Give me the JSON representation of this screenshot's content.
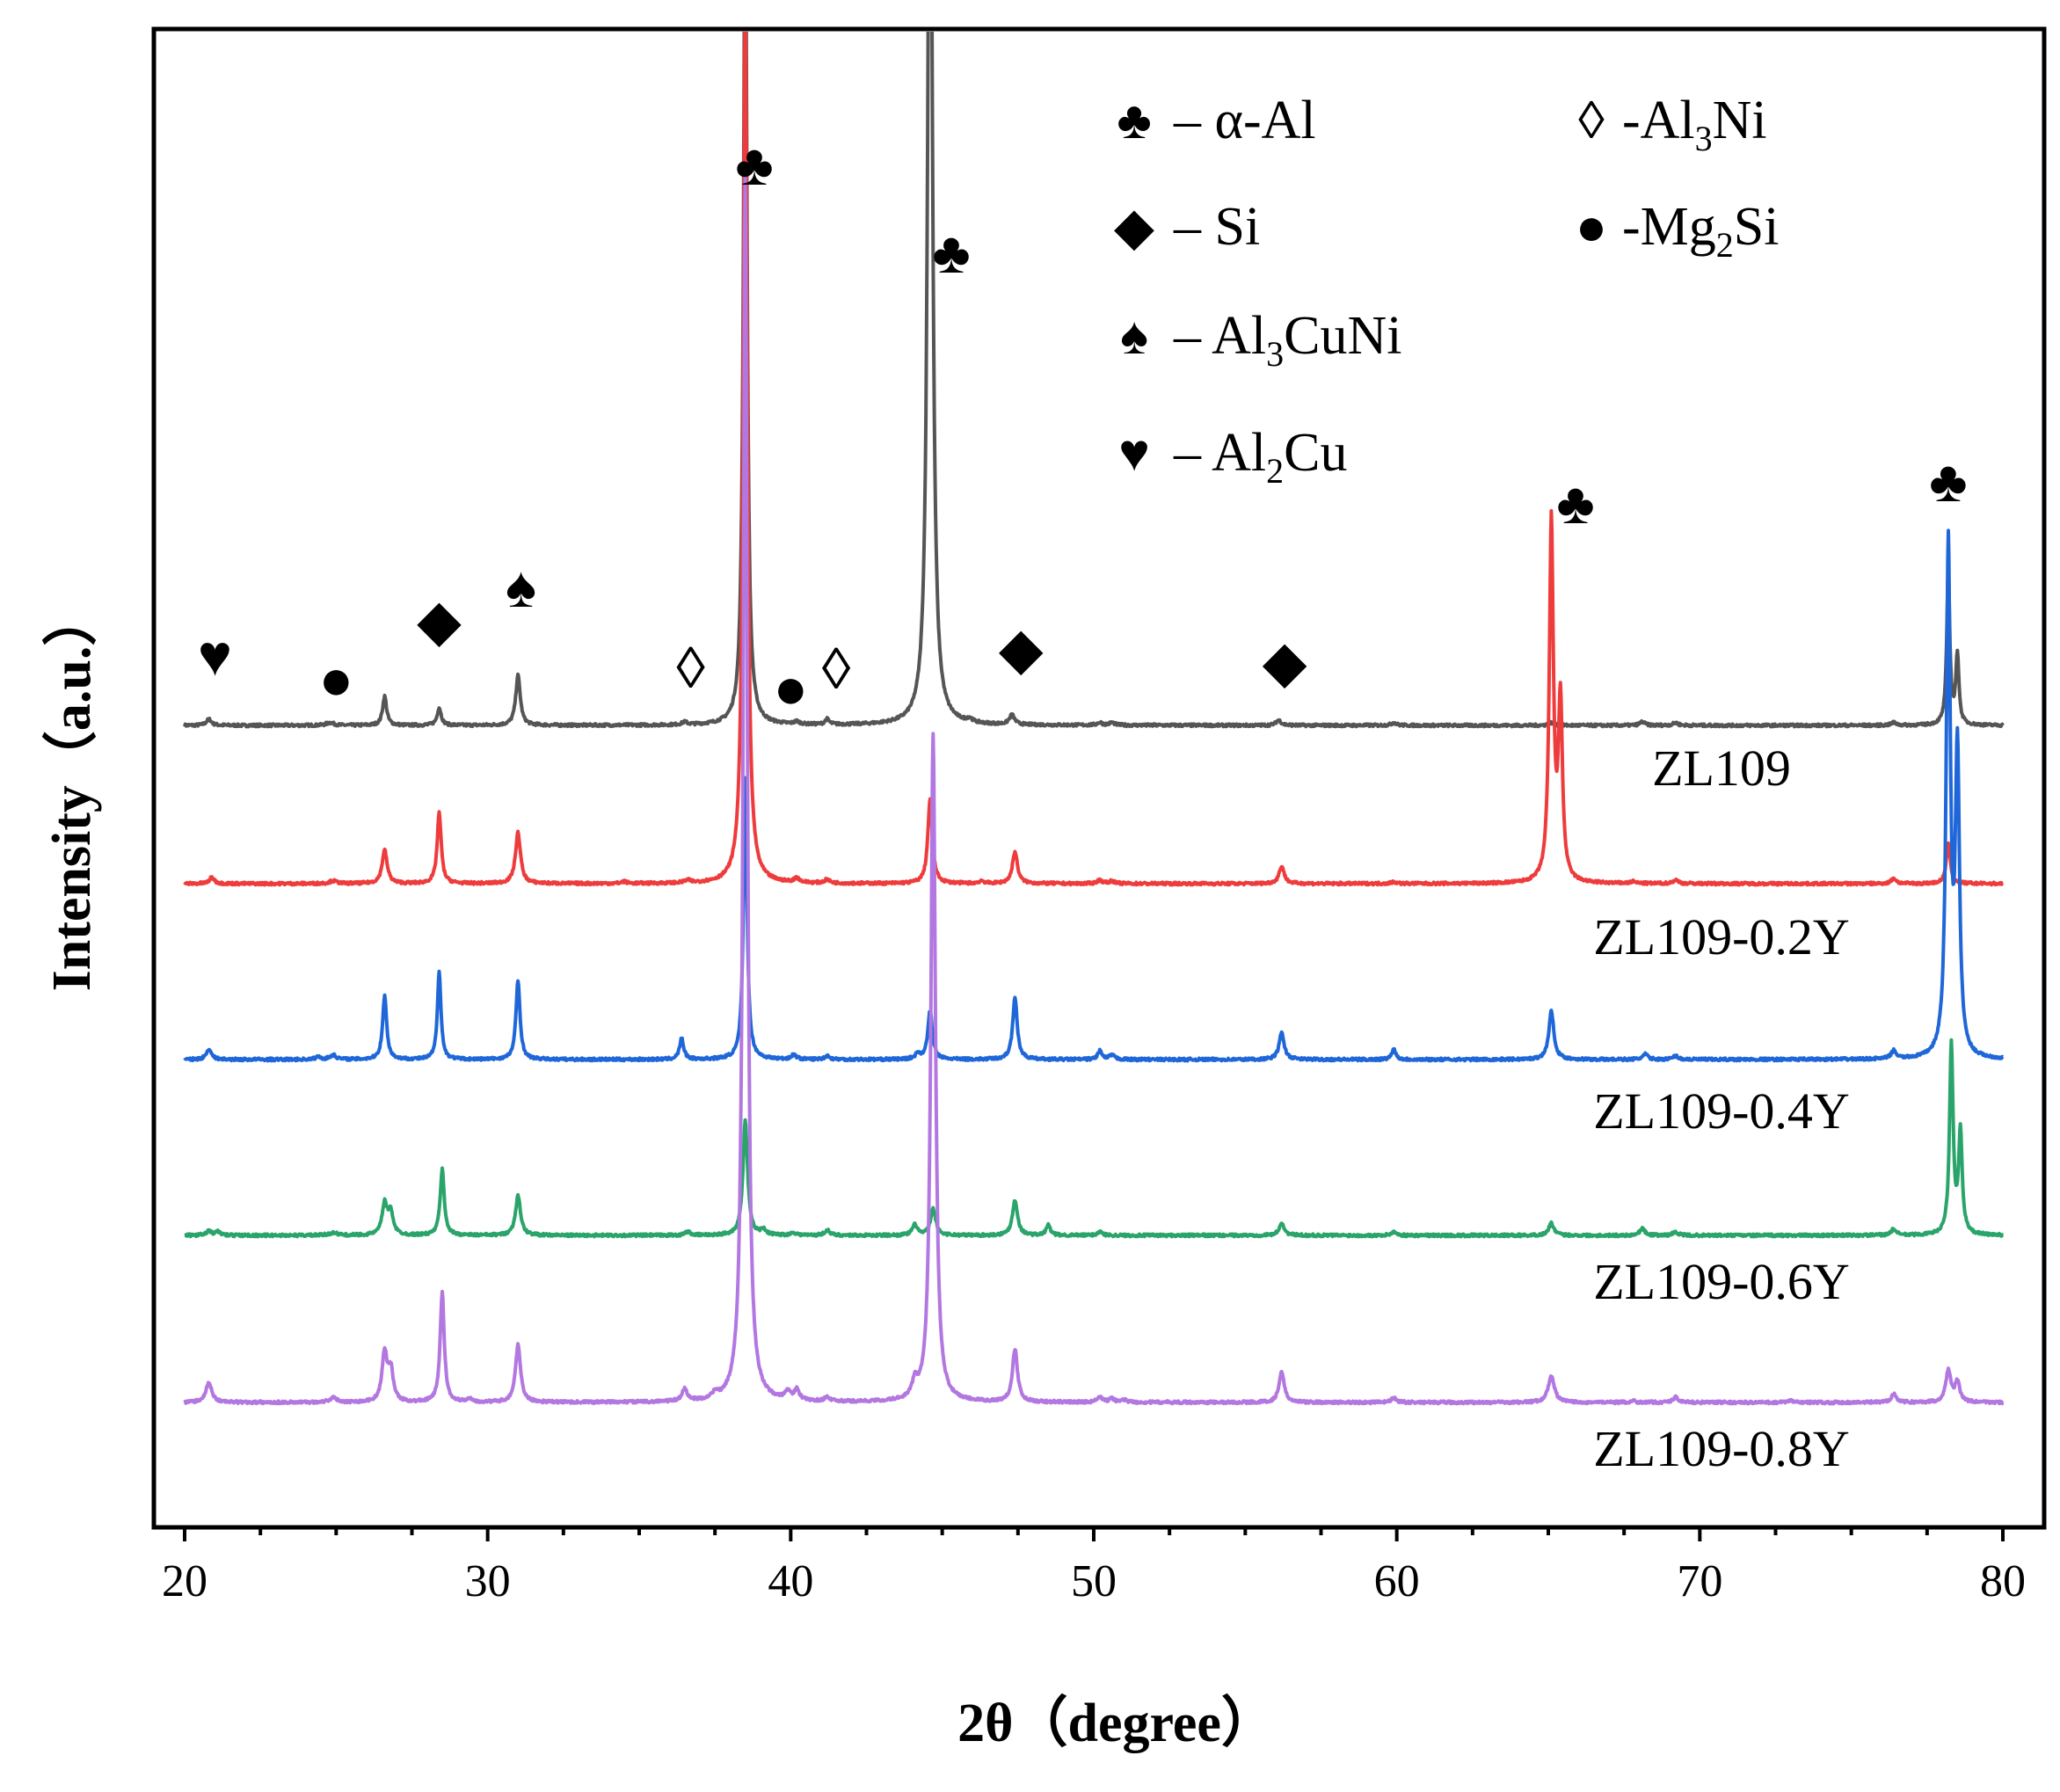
{
  "chart_data": {
    "type": "line",
    "title": "",
    "xlabel": "2θ（degree）",
    "ylabel": "Intensity（a.u.）",
    "xlim": [
      20,
      80
    ],
    "x_ticks": [
      20,
      30,
      40,
      50,
      60,
      70,
      80
    ],
    "y_ticks": [],
    "series": [
      {
        "name": "ZL109",
        "label": "ZL109",
        "color": "#555555",
        "baseline": 0,
        "peaks": [
          [
            20.8,
            7,
            0.1
          ],
          [
            24.8,
            3,
            0.15
          ],
          [
            26.6,
            33,
            0.08
          ],
          [
            28.4,
            20,
            0.08
          ],
          [
            31.0,
            57,
            0.09
          ],
          [
            36.5,
            3,
            0.1
          ],
          [
            38.5,
            980,
            0.07
          ],
          [
            40.2,
            3,
            0.1
          ],
          [
            41.2,
            6,
            0.08
          ],
          [
            44.6,
            1200,
            0.09
          ],
          [
            45.9,
            4,
            0.1
          ],
          [
            47.3,
            11,
            0.1
          ],
          [
            50.2,
            3,
            0.1
          ],
          [
            50.6,
            3,
            0.1
          ],
          [
            56.1,
            6,
            0.1
          ],
          [
            59.9,
            3,
            0.1
          ],
          [
            65.1,
            3,
            0.1
          ],
          [
            68.1,
            4,
            0.1
          ],
          [
            69.2,
            3,
            0.1
          ],
          [
            76.4,
            3,
            0.1
          ],
          [
            78.2,
            175,
            0.06
          ],
          [
            78.5,
            80,
            0.06
          ]
        ]
      },
      {
        "name": "ZL109-0.2Y",
        "label": "ZL109-0.2Y",
        "color": "#ee3b3b",
        "baseline": -180,
        "peaks": [
          [
            20.9,
            7,
            0.1
          ],
          [
            24.9,
            3,
            0.15
          ],
          [
            26.6,
            38,
            0.1
          ],
          [
            28.4,
            80,
            0.08
          ],
          [
            31.0,
            58,
            0.1
          ],
          [
            34.5,
            2,
            0.1
          ],
          [
            36.6,
            3,
            0.1
          ],
          [
            38.5,
            1000,
            0.08
          ],
          [
            40.2,
            5,
            0.1
          ],
          [
            41.2,
            4,
            0.1
          ],
          [
            44.6,
            95,
            0.09
          ],
          [
            46.3,
            3,
            0.1
          ],
          [
            47.4,
            36,
            0.1
          ],
          [
            50.2,
            4,
            0.1
          ],
          [
            50.6,
            3,
            0.1
          ],
          [
            56.2,
            20,
            0.1
          ],
          [
            59.9,
            2,
            0.1
          ],
          [
            65.1,
            410,
            0.08
          ],
          [
            65.4,
            200,
            0.08
          ],
          [
            67.8,
            2,
            0.1
          ],
          [
            69.2,
            4,
            0.1
          ],
          [
            76.4,
            6,
            0.1
          ],
          [
            78.2,
            45,
            0.08
          ]
        ]
      },
      {
        "name": "ZL109-0.4Y",
        "label": "ZL109-0.4Y",
        "color": "#1f67d8",
        "baseline": -380,
        "peaks": [
          [
            20.8,
            12,
            0.1
          ],
          [
            24.4,
            3,
            0.1
          ],
          [
            24.9,
            5,
            0.12
          ],
          [
            26.6,
            72,
            0.08
          ],
          [
            28.4,
            100,
            0.07
          ],
          [
            31.0,
            90,
            0.08
          ],
          [
            36.4,
            24,
            0.08
          ],
          [
            38.5,
            320,
            0.07
          ],
          [
            40.1,
            5,
            0.1
          ],
          [
            41.2,
            4,
            0.1
          ],
          [
            44.2,
            6,
            0.1
          ],
          [
            44.6,
            55,
            0.09
          ],
          [
            47.4,
            70,
            0.09
          ],
          [
            50.2,
            10,
            0.08
          ],
          [
            50.6,
            5,
            0.1
          ],
          [
            56.2,
            30,
            0.1
          ],
          [
            59.9,
            12,
            0.08
          ],
          [
            65.1,
            55,
            0.1
          ],
          [
            68.2,
            6,
            0.1
          ],
          [
            69.2,
            4,
            0.1
          ],
          [
            76.4,
            9,
            0.1
          ],
          [
            78.2,
            580,
            0.08
          ],
          [
            78.5,
            340,
            0.08
          ]
        ]
      },
      {
        "name": "ZL109-0.6Y",
        "label": "ZL109-0.6Y",
        "color": "#2aa46a",
        "baseline": -580,
        "peaks": [
          [
            20.8,
            5,
            0.1
          ],
          [
            21.1,
            4,
            0.1
          ],
          [
            24.9,
            3,
            0.15
          ],
          [
            26.6,
            35,
            0.1
          ],
          [
            26.8,
            25,
            0.1
          ],
          [
            28.5,
            75,
            0.08
          ],
          [
            31.0,
            45,
            0.1
          ],
          [
            36.6,
            4,
            0.1
          ],
          [
            38.5,
            130,
            0.09
          ],
          [
            39.1,
            6,
            0.1
          ],
          [
            40.1,
            3,
            0.1
          ],
          [
            41.2,
            6,
            0.1
          ],
          [
            44.1,
            12,
            0.1
          ],
          [
            44.7,
            30,
            0.1
          ],
          [
            47.4,
            40,
            0.1
          ],
          [
            48.5,
            12,
            0.08
          ],
          [
            50.2,
            4,
            0.1
          ],
          [
            56.2,
            14,
            0.1
          ],
          [
            59.9,
            4,
            0.1
          ],
          [
            65.1,
            14,
            0.1
          ],
          [
            68.1,
            8,
            0.1
          ],
          [
            69.2,
            4,
            0.1
          ],
          [
            76.4,
            7,
            0.1
          ],
          [
            78.3,
            215,
            0.07
          ],
          [
            78.6,
            115,
            0.07
          ]
        ]
      },
      {
        "name": "ZL109-0.8Y",
        "label": "ZL109-0.8Y",
        "color": "#b277e0",
        "baseline": -770,
        "peaks": [
          [
            20.8,
            22,
            0.12
          ],
          [
            24.9,
            5,
            0.15
          ],
          [
            26.6,
            55,
            0.1
          ],
          [
            26.8,
            35,
            0.1
          ],
          [
            28.5,
            125,
            0.08
          ],
          [
            29.4,
            4,
            0.1
          ],
          [
            31.0,
            65,
            0.1
          ],
          [
            36.5,
            14,
            0.1
          ],
          [
            37.5,
            6,
            0.1
          ],
          [
            38.5,
            1400,
            0.08
          ],
          [
            39.9,
            10,
            0.1
          ],
          [
            40.2,
            12,
            0.1
          ],
          [
            41.2,
            5,
            0.1
          ],
          [
            44.1,
            18,
            0.1
          ],
          [
            44.7,
            760,
            0.09
          ],
          [
            47.4,
            60,
            0.1
          ],
          [
            50.2,
            6,
            0.1
          ],
          [
            50.6,
            4,
            0.1
          ],
          [
            51.0,
            3,
            0.1
          ],
          [
            56.2,
            35,
            0.1
          ],
          [
            59.9,
            5,
            0.1
          ],
          [
            65.1,
            30,
            0.12
          ],
          [
            67.8,
            2,
            0.1
          ],
          [
            69.2,
            6,
            0.1
          ],
          [
            73.0,
            2,
            0.1
          ],
          [
            76.4,
            10,
            0.1
          ],
          [
            78.2,
            36,
            0.1
          ],
          [
            78.5,
            22,
            0.1
          ]
        ]
      }
    ],
    "peak_markers": [
      {
        "symbol": "♥",
        "style": "filled",
        "x": 21.0
      },
      {
        "symbol": "●",
        "style": "filled",
        "x": 25.0
      },
      {
        "symbol": "◆",
        "style": "filled",
        "x": 28.4
      },
      {
        "symbol": "♠",
        "style": "filled",
        "x": 31.1
      },
      {
        "symbol": "◊",
        "style": "open",
        "x": 36.7
      },
      {
        "symbol": "●",
        "style": "filled",
        "x": 40.0
      },
      {
        "symbol": "◊",
        "style": "open",
        "x": 41.5
      },
      {
        "symbol": "♣",
        "style": "filled",
        "x": 38.8
      },
      {
        "symbol": "♣",
        "style": "filled",
        "x": 45.3
      },
      {
        "symbol": "◆",
        "style": "filled",
        "x": 47.6
      },
      {
        "symbol": "◆",
        "style": "filled",
        "x": 56.3
      },
      {
        "symbol": "♣",
        "style": "filled",
        "x": 65.9
      },
      {
        "symbol": "♣",
        "style": "filled",
        "x": 78.2
      }
    ],
    "legend": {
      "placement": "top-right",
      "columns": [
        [
          {
            "symbol": "♣",
            "dash": "– ",
            "text": "α-Al"
          },
          {
            "symbol": "◆",
            "dash": "– ",
            "text": "Si"
          },
          {
            "symbol": "♠",
            "dash": "– ",
            "text": "Al",
            "sub": "3",
            "tail": "CuNi"
          },
          {
            "symbol": "♥",
            "dash": "– ",
            "text": "Al",
            "sub": "2",
            "tail": "Cu"
          }
        ],
        [
          {
            "symbol": "◊",
            "dash": "-",
            "text": "Al",
            "sub": "3",
            "tail": "Ni"
          },
          {
            "symbol": "●",
            "dash": "-",
            "text": "Mg",
            "sub": "2",
            "tail": "Si"
          }
        ]
      ]
    }
  }
}
